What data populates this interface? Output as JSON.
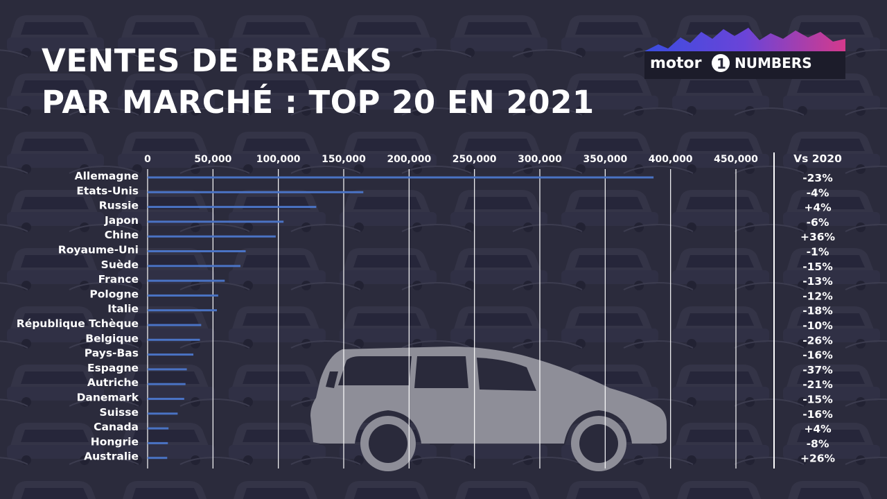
{
  "header": {
    "title_line1": "VENTES DE BREAKS",
    "title_line2": "PAR MARCHÉ : TOP 20 EN 2021"
  },
  "logo": {
    "word1": "motor",
    "digit": "1",
    "word2": "NUMBERS"
  },
  "colors": {
    "bar": "#4a73c4",
    "grid": "#ffffff",
    "text": "#ffffff",
    "background": "#2a2a3b",
    "car": "#8e8e98"
  },
  "icons": {
    "background": "car-parking-photo-icon",
    "illustration": "station-wagon-car-icon"
  },
  "chart_data": {
    "type": "bar",
    "orientation": "horizontal",
    "title": "VENTES DE BREAKS PAR MARCHÉ : TOP 20 EN 2021",
    "categories": [
      "Allemagne",
      "Etats-Unis",
      "Russie",
      "Japon",
      "Chine",
      "Royaume-Uni",
      "Suède",
      "France",
      "Pologne",
      "Italie",
      "République Tchèque",
      "Belgique",
      "Pays-Bas",
      "Espagne",
      "Autriche",
      "Danemark",
      "Suisse",
      "Canada",
      "Hongrie",
      "Australie"
    ],
    "values": [
      387000,
      165000,
      129000,
      104000,
      98000,
      75000,
      71000,
      59000,
      54000,
      53000,
      41000,
      40000,
      35000,
      30000,
      29000,
      28000,
      23000,
      16000,
      15500,
      15000
    ],
    "xlim": [
      0,
      450000
    ],
    "xticks": [
      "0",
      "50,000",
      "100,000",
      "150,000",
      "200,000",
      "250,000",
      "300,000",
      "350,000",
      "400,000",
      "450,000"
    ],
    "xtick_values": [
      0,
      50000,
      100000,
      150000,
      200000,
      250000,
      300000,
      350000,
      400000,
      450000
    ],
    "change_header": "Vs 2020",
    "changes": [
      "-23%",
      "-4%",
      "+4%",
      "-6%",
      "+36%",
      "-1%",
      "-15%",
      "-13%",
      "-12%",
      "-18%",
      "-10%",
      "-26%",
      "-16%",
      "-37%",
      "-21%",
      "-15%",
      "-16%",
      "+4%",
      "-8%",
      "+26%"
    ],
    "grid": true,
    "legend": "none"
  }
}
